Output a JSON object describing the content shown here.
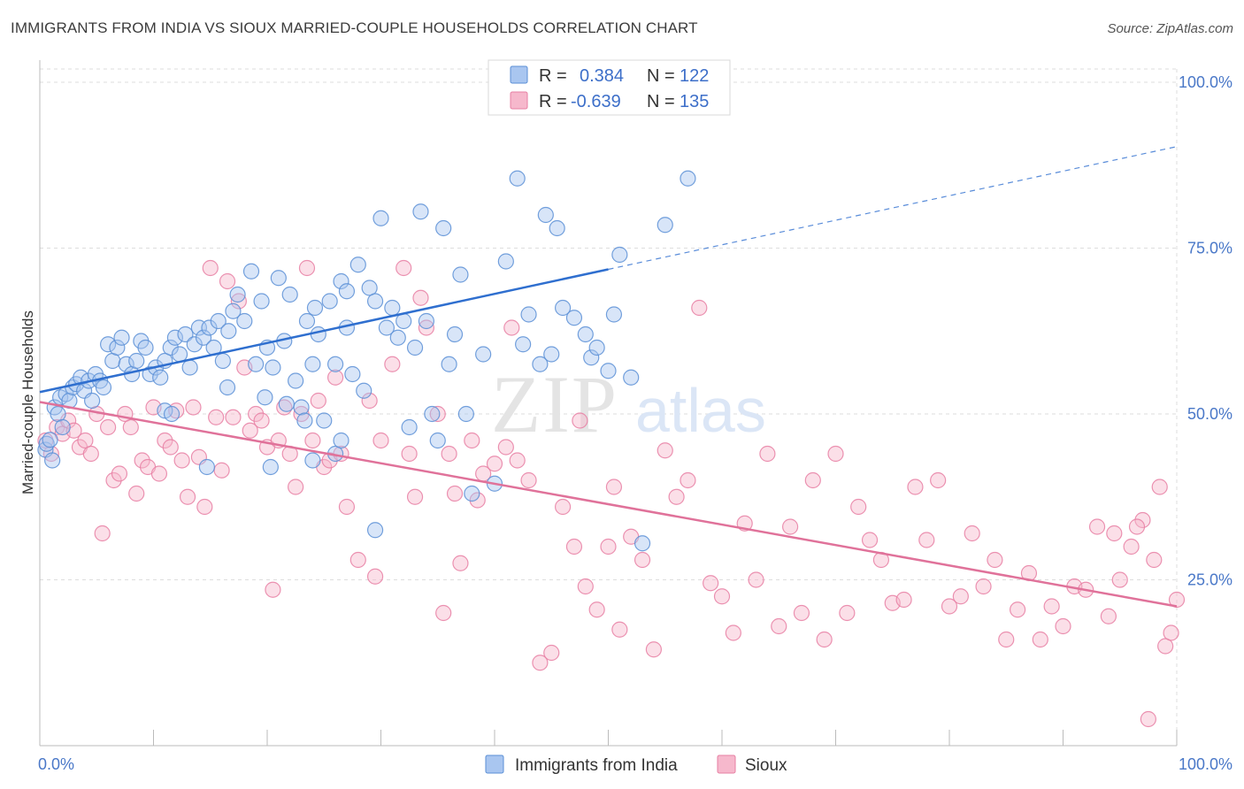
{
  "title": "IMMIGRANTS FROM INDIA VS SIOUX MARRIED-COUPLE HOUSEHOLDS CORRELATION CHART",
  "source": "Source: ZipAtlas.com",
  "watermark": {
    "zip": "ZIP",
    "atlas": "atlas"
  },
  "colors": {
    "india_fill": "#a9c6f0",
    "india_stroke": "#5b8fd6",
    "india_line": "#2f6fcf",
    "sioux_fill": "#f6b8cc",
    "sioux_stroke": "#e77fa3",
    "sioux_line": "#e0729a",
    "grid": "#dddddd",
    "tick_label": "#4a78c8"
  },
  "legend": {
    "rows": [
      {
        "r_label": "R =",
        "r_value": "0.384",
        "n_label": "N =",
        "n_value": "122"
      },
      {
        "r_label": "R =",
        "r_value": "-0.639",
        "n_label": "N =",
        "n_value": "135"
      }
    ]
  },
  "chart_data": {
    "type": "scatter",
    "title": "IMMIGRANTS FROM INDIA VS SIOUX MARRIED-COUPLE HOUSEHOLDS CORRELATION CHART",
    "xlabel": "",
    "ylabel": "Married-couple Households",
    "xlim": [
      0,
      100
    ],
    "ylim": [
      0,
      102
    ],
    "x_tick_labels": [
      "0.0%",
      "100.0%"
    ],
    "y_ticks": [
      25,
      50,
      75,
      100
    ],
    "y_tick_labels": [
      "25.0%",
      "50.0%",
      "75.0%",
      "100.0%"
    ],
    "grid": true,
    "legend_position": "top-center",
    "series": [
      {
        "name": "Immigrants from India",
        "r": 0.384,
        "n": 122,
        "trend": {
          "x0": 0,
          "y0": 53.3,
          "x1": 50,
          "y1": 71.8,
          "dashed_to_x": 100,
          "dashed_to_y": 90.3
        },
        "points": [
          [
            0.5,
            44.6
          ],
          [
            0.6,
            45.5
          ],
          [
            0.9,
            46.1
          ],
          [
            1.1,
            43
          ],
          [
            1.3,
            51
          ],
          [
            1.6,
            50
          ],
          [
            1.8,
            52.5
          ],
          [
            2,
            48
          ],
          [
            2.3,
            53
          ],
          [
            2.6,
            52
          ],
          [
            2.9,
            54
          ],
          [
            3.2,
            54.5
          ],
          [
            3.6,
            55.5
          ],
          [
            3.9,
            53.5
          ],
          [
            4.3,
            55
          ],
          [
            4.6,
            52
          ],
          [
            4.9,
            56
          ],
          [
            5.3,
            55
          ],
          [
            5.6,
            54
          ],
          [
            6,
            60.5
          ],
          [
            6.4,
            58
          ],
          [
            6.8,
            60
          ],
          [
            7.2,
            61.5
          ],
          [
            7.6,
            57.5
          ],
          [
            8.1,
            56
          ],
          [
            8.5,
            58
          ],
          [
            8.9,
            61
          ],
          [
            9.3,
            60
          ],
          [
            9.7,
            56
          ],
          [
            10.2,
            57
          ],
          [
            10.6,
            55.5
          ],
          [
            11,
            58
          ],
          [
            11.5,
            60
          ],
          [
            11.9,
            61.5
          ],
          [
            12.3,
            59
          ],
          [
            12.8,
            62
          ],
          [
            13.2,
            57
          ],
          [
            13.6,
            60.5
          ],
          [
            14,
            63
          ],
          [
            14.4,
            61.5
          ],
          [
            14.9,
            63
          ],
          [
            15.3,
            60
          ],
          [
            15.7,
            64
          ],
          [
            16.1,
            58
          ],
          [
            16.6,
            62.5
          ],
          [
            17,
            65.5
          ],
          [
            17.4,
            68
          ],
          [
            18,
            64
          ],
          [
            18.6,
            71.5
          ],
          [
            19,
            57.5
          ],
          [
            19.5,
            67
          ],
          [
            20,
            60
          ],
          [
            20.5,
            57
          ],
          [
            21,
            70.5
          ],
          [
            21.5,
            61
          ],
          [
            22,
            68
          ],
          [
            22.5,
            55
          ],
          [
            23,
            51
          ],
          [
            23.5,
            64
          ],
          [
            24,
            57.5
          ],
          [
            24.5,
            62
          ],
          [
            25,
            49
          ],
          [
            25.5,
            67
          ],
          [
            26,
            57.5
          ],
          [
            26.5,
            70
          ],
          [
            27,
            63
          ],
          [
            27.5,
            56
          ],
          [
            28,
            72.5
          ],
          [
            28.5,
            53.5
          ],
          [
            29,
            69
          ],
          [
            29.5,
            67
          ],
          [
            30,
            79.5
          ],
          [
            30.5,
            63
          ],
          [
            31,
            66
          ],
          [
            31.5,
            61.5
          ],
          [
            32,
            64
          ],
          [
            32.5,
            48
          ],
          [
            33,
            60
          ],
          [
            33.5,
            80.5
          ],
          [
            34,
            64
          ],
          [
            34.5,
            50
          ],
          [
            35,
            46
          ],
          [
            35.5,
            78
          ],
          [
            36,
            57.5
          ],
          [
            36.5,
            62
          ],
          [
            37,
            71
          ],
          [
            37.5,
            50
          ],
          [
            38,
            38
          ],
          [
            39,
            59
          ],
          [
            40,
            39.5
          ],
          [
            41,
            73
          ],
          [
            42,
            85.5
          ],
          [
            42.5,
            60.5
          ],
          [
            43,
            65
          ],
          [
            44,
            57.5
          ],
          [
            44.5,
            80
          ],
          [
            45,
            59
          ],
          [
            45.5,
            78
          ],
          [
            46,
            66
          ],
          [
            47,
            64.5
          ],
          [
            48,
            62
          ],
          [
            48.5,
            58.5
          ],
          [
            49,
            60
          ],
          [
            50,
            56.5
          ],
          [
            50.5,
            65
          ],
          [
            51,
            74
          ],
          [
            52,
            55.5
          ],
          [
            53,
            30.5
          ],
          [
            55,
            78.5
          ],
          [
            57,
            85.5
          ],
          [
            24,
            43
          ],
          [
            27,
            68.5
          ],
          [
            24.2,
            66
          ],
          [
            26,
            44
          ],
          [
            26.5,
            46
          ],
          [
            11,
            50.5
          ],
          [
            14.7,
            42
          ],
          [
            11.6,
            50
          ],
          [
            16.5,
            54
          ],
          [
            19.8,
            52.5
          ],
          [
            20.3,
            42
          ],
          [
            21.7,
            51.5
          ],
          [
            23.3,
            49
          ],
          [
            29.5,
            32.5
          ]
        ]
      },
      {
        "name": "Sioux",
        "r": -0.639,
        "n": 135,
        "trend": {
          "x0": 0,
          "y0": 51.8,
          "x1": 100,
          "y1": 21.0
        },
        "points": [
          [
            0.5,
            46
          ],
          [
            1,
            44
          ],
          [
            1.5,
            48
          ],
          [
            2,
            47
          ],
          [
            2.5,
            49
          ],
          [
            3,
            47.5
          ],
          [
            3.5,
            45
          ],
          [
            4,
            46
          ],
          [
            4.5,
            44
          ],
          [
            5,
            50
          ],
          [
            5.5,
            32
          ],
          [
            6,
            48
          ],
          [
            6.5,
            40
          ],
          [
            7,
            41
          ],
          [
            7.5,
            50
          ],
          [
            8,
            48
          ],
          [
            8.5,
            38
          ],
          [
            9,
            43
          ],
          [
            9.5,
            42
          ],
          [
            10,
            51
          ],
          [
            10.5,
            41
          ],
          [
            11,
            46
          ],
          [
            11.5,
            45
          ],
          [
            12,
            50.5
          ],
          [
            12.5,
            43
          ],
          [
            13,
            37.5
          ],
          [
            13.5,
            51
          ],
          [
            14,
            43.5
          ],
          [
            14.5,
            36
          ],
          [
            15,
            72
          ],
          [
            15.5,
            49.5
          ],
          [
            16,
            41.5
          ],
          [
            16.5,
            70
          ],
          [
            17,
            49.5
          ],
          [
            17.5,
            67
          ],
          [
            18,
            57
          ],
          [
            18.5,
            47.5
          ],
          [
            19,
            50
          ],
          [
            19.5,
            49
          ],
          [
            20,
            45
          ],
          [
            20.5,
            23.5
          ],
          [
            21,
            46
          ],
          [
            21.5,
            51
          ],
          [
            22,
            44
          ],
          [
            22.5,
            39
          ],
          [
            23,
            50
          ],
          [
            23.5,
            72
          ],
          [
            24,
            46
          ],
          [
            24.5,
            52
          ],
          [
            25,
            42
          ],
          [
            25.5,
            43
          ],
          [
            26,
            55.5
          ],
          [
            26.5,
            44
          ],
          [
            27,
            36
          ],
          [
            28,
            28
          ],
          [
            29,
            52
          ],
          [
            29.5,
            25.5
          ],
          [
            30,
            46
          ],
          [
            31,
            57.5
          ],
          [
            32,
            72
          ],
          [
            32.5,
            44
          ],
          [
            33,
            37.5
          ],
          [
            33.5,
            67.5
          ],
          [
            34,
            63
          ],
          [
            35,
            50
          ],
          [
            35.5,
            20
          ],
          [
            36,
            44
          ],
          [
            36.5,
            38
          ],
          [
            37,
            27.5
          ],
          [
            38,
            46
          ],
          [
            38.5,
            37
          ],
          [
            39,
            41
          ],
          [
            40,
            42.5
          ],
          [
            41,
            45
          ],
          [
            41.5,
            63
          ],
          [
            42,
            43
          ],
          [
            43,
            40
          ],
          [
            44,
            12.5
          ],
          [
            45,
            14
          ],
          [
            46,
            36
          ],
          [
            47,
            30
          ],
          [
            47.5,
            49
          ],
          [
            48,
            24
          ],
          [
            49,
            20.5
          ],
          [
            50,
            30
          ],
          [
            50.5,
            39
          ],
          [
            51,
            17.5
          ],
          [
            52,
            31.5
          ],
          [
            53,
            28
          ],
          [
            54,
            14.5
          ],
          [
            55,
            44.5
          ],
          [
            56,
            37.5
          ],
          [
            57,
            40
          ],
          [
            58,
            66
          ],
          [
            59,
            24.5
          ],
          [
            60,
            22.5
          ],
          [
            61,
            17
          ],
          [
            62,
            33.5
          ],
          [
            63,
            25
          ],
          [
            64,
            44
          ],
          [
            65,
            18
          ],
          [
            66,
            33
          ],
          [
            67,
            20
          ],
          [
            68,
            40
          ],
          [
            69,
            16
          ],
          [
            70,
            44
          ],
          [
            71,
            20
          ],
          [
            72,
            36
          ],
          [
            73,
            31
          ],
          [
            74,
            28
          ],
          [
            75,
            21.5
          ],
          [
            76,
            22
          ],
          [
            77,
            39
          ],
          [
            78,
            31
          ],
          [
            79,
            40
          ],
          [
            80,
            21
          ],
          [
            81,
            22.5
          ],
          [
            82,
            32
          ],
          [
            83,
            24
          ],
          [
            84,
            28
          ],
          [
            85,
            16
          ],
          [
            86,
            20.5
          ],
          [
            87,
            26
          ],
          [
            88,
            16
          ],
          [
            89,
            21
          ],
          [
            90,
            18
          ],
          [
            91,
            24
          ],
          [
            92,
            23.5
          ],
          [
            93,
            33
          ],
          [
            94,
            19.5
          ],
          [
            94.5,
            32
          ],
          [
            95,
            25
          ],
          [
            96,
            30
          ],
          [
            97,
            34
          ],
          [
            98,
            28
          ],
          [
            99,
            15
          ],
          [
            97.5,
            4
          ],
          [
            96.5,
            33
          ],
          [
            98.5,
            39
          ],
          [
            99.5,
            17
          ],
          [
            100,
            22
          ]
        ]
      }
    ]
  },
  "bottom_legend": {
    "items": [
      "Immigrants from India",
      "Sioux"
    ]
  }
}
